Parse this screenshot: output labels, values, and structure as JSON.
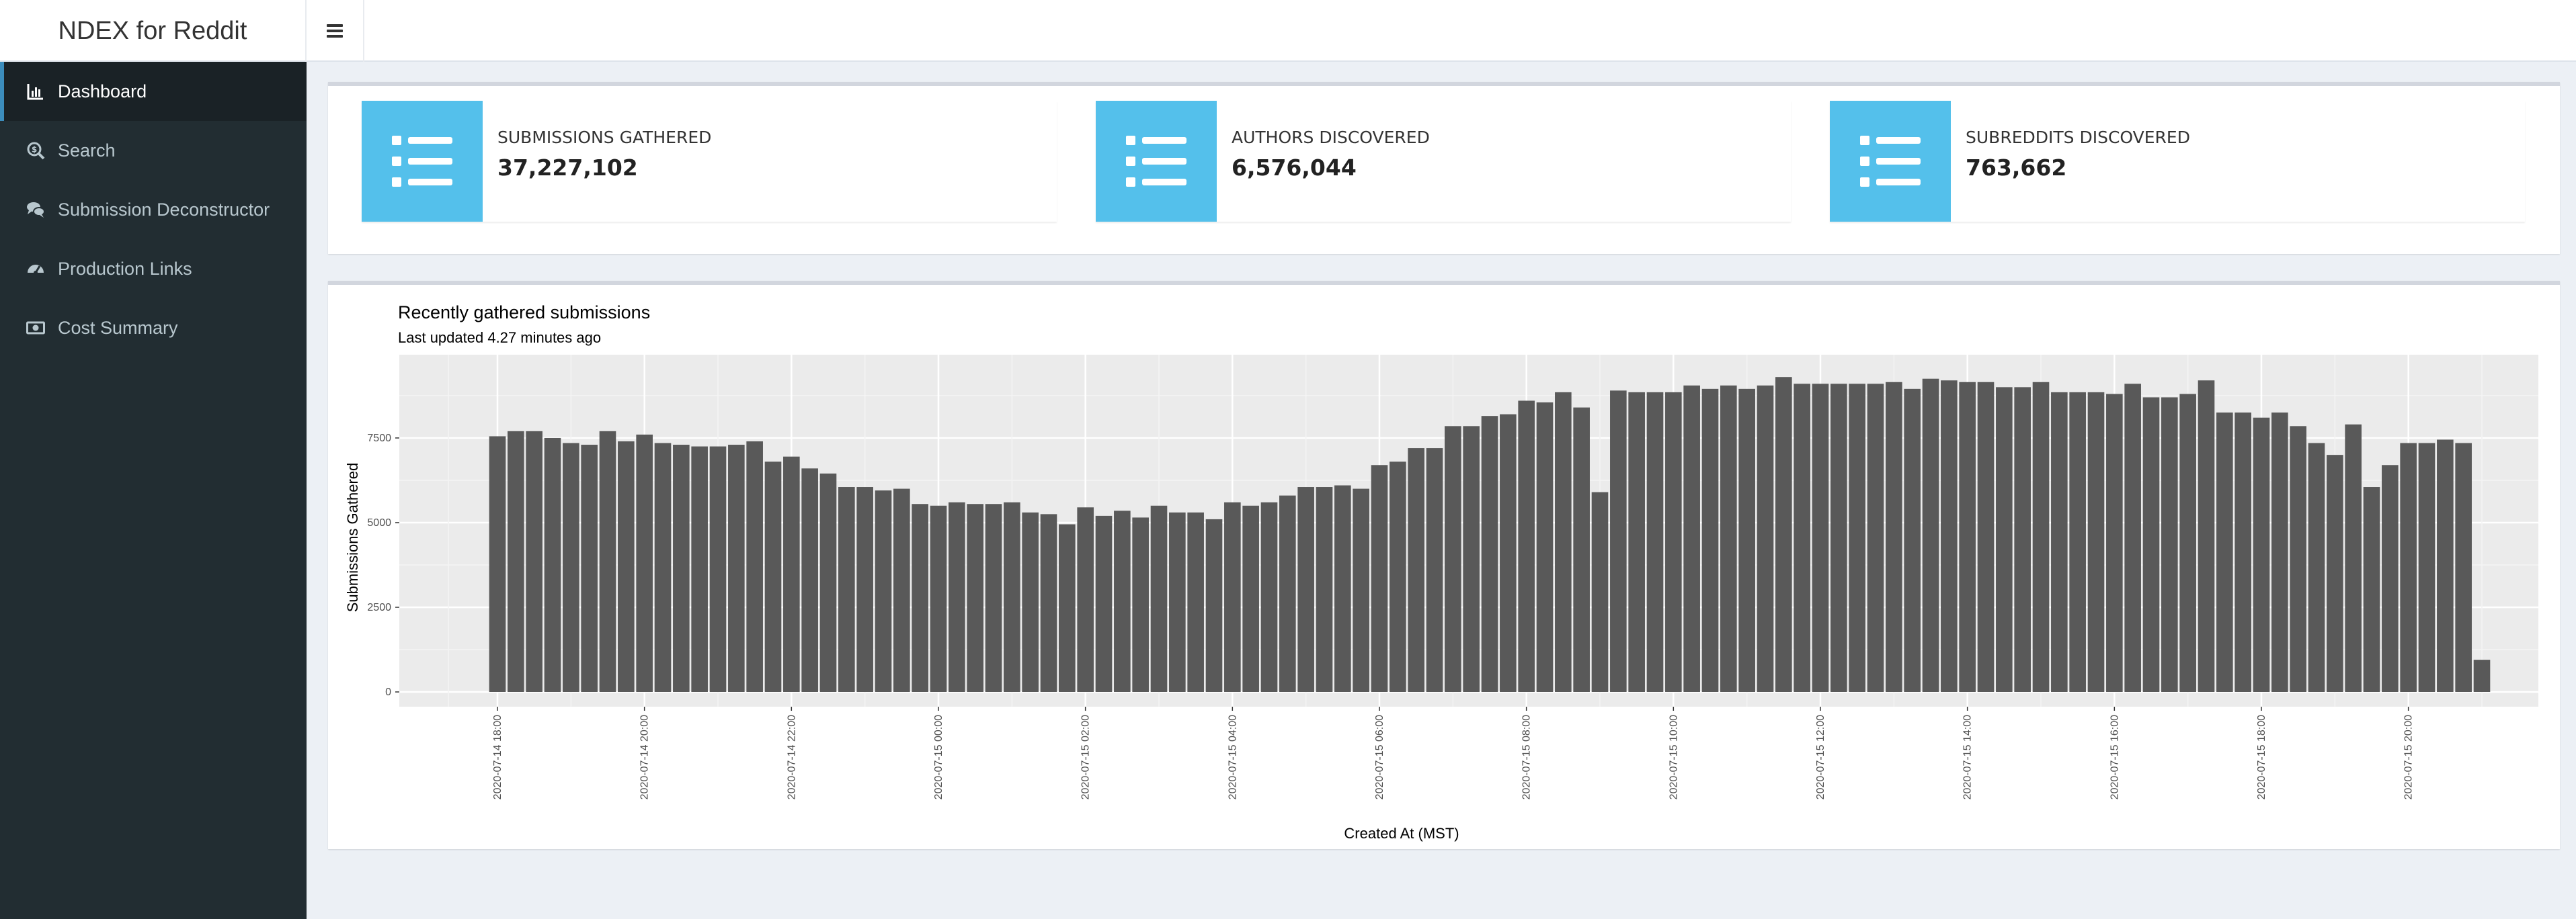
{
  "app": {
    "title": "NDEX for Reddit"
  },
  "sidebar": {
    "items": [
      {
        "label": "Dashboard",
        "icon": "bar-chart-icon",
        "active": true
      },
      {
        "label": "Search",
        "icon": "search-dollar-icon",
        "active": false
      },
      {
        "label": "Submission Deconstructor",
        "icon": "comments-icon",
        "active": false
      },
      {
        "label": "Production Links",
        "icon": "gauge-icon",
        "active": false
      },
      {
        "label": "Cost Summary",
        "icon": "money-bill-icon",
        "active": false
      }
    ]
  },
  "stats": [
    {
      "label": "Submissions Gathered",
      "value": "37,227,102",
      "icon": "list-icon"
    },
    {
      "label": "Authors Discovered",
      "value": "6,576,044",
      "icon": "list-icon"
    },
    {
      "label": "Subreddits Discovered",
      "value": "763,662",
      "icon": "list-icon"
    }
  ],
  "colors": {
    "accent": "#54c0eb",
    "bar": "#595959",
    "panel": "#ebebeb",
    "sidebar": "#222d32"
  },
  "chart": {
    "title": "Recently gathered submissions",
    "subtitle": "Last updated 4.27 minutes ago"
  },
  "chart_data": {
    "type": "bar",
    "title": "Recently gathered submissions",
    "subtitle": "Last updated 4.27 minutes ago",
    "xlabel": "Created At (MST)",
    "ylabel": "Submissions Gathered",
    "ylim": [
      0,
      9800
    ],
    "yticks": [
      0,
      2500,
      5000,
      7500
    ],
    "grid": true,
    "x_start": "2020-07-14 18:00",
    "x_interval_minutes": 15,
    "xticks": [
      "2020-07-14 18:00",
      "2020-07-14 20:00",
      "2020-07-14 22:00",
      "2020-07-15 00:00",
      "2020-07-15 02:00",
      "2020-07-15 04:00",
      "2020-07-15 06:00",
      "2020-07-15 08:00",
      "2020-07-15 10:00",
      "2020-07-15 12:00",
      "2020-07-15 14:00",
      "2020-07-15 16:00",
      "2020-07-15 18:00",
      "2020-07-15 20:00"
    ],
    "values": [
      7550,
      7700,
      7700,
      7500,
      7350,
      7300,
      7700,
      7400,
      7600,
      7350,
      7300,
      7250,
      7250,
      7300,
      7400,
      6800,
      6950,
      6600,
      6450,
      6050,
      6050,
      5950,
      6000,
      5550,
      5500,
      5600,
      5550,
      5550,
      5600,
      5300,
      5250,
      4950,
      5450,
      5200,
      5350,
      5150,
      5500,
      5300,
      5300,
      5100,
      5600,
      5500,
      5600,
      5800,
      6050,
      6050,
      6100,
      6000,
      6700,
      6800,
      7200,
      7200,
      7850,
      7850,
      8150,
      8200,
      8600,
      8550,
      8850,
      8400,
      5900,
      8900,
      8850,
      8850,
      8850,
      9050,
      8950,
      9050,
      8950,
      9050,
      9300,
      9100,
      9100,
      9100,
      9100,
      9100,
      9150,
      8950,
      9250,
      9200,
      9150,
      9150,
      9000,
      9000,
      9150,
      8850,
      8850,
      8850,
      8800,
      9100,
      8700,
      8700,
      8800,
      9200,
      8250,
      8250,
      8100,
      8250,
      7850,
      7350,
      7000,
      7900,
      6050,
      6700,
      7350,
      7350,
      7450,
      7350,
      950
    ]
  }
}
